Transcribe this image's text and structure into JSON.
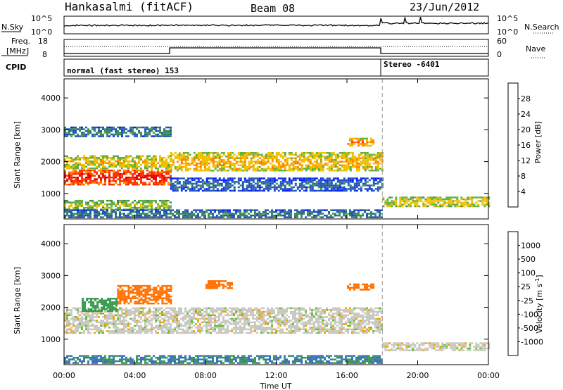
{
  "header": {
    "station": "Hankasalmi (fitACF)",
    "beam": "Beam 08",
    "date": "23/Jun/2012"
  },
  "noise_panel": {
    "left_label": "N.Sky",
    "left_ticks": [
      "10^5",
      "10^0"
    ],
    "right_label": "N.Search",
    "right_ticks": [
      "10^5",
      "10^0"
    ]
  },
  "freq_panel": {
    "left_label_1": "Freq.",
    "left_label_2": "[MHz]",
    "left_ticks": [
      "18",
      "8"
    ],
    "right_label": "Nave",
    "right_ticks": [
      "60",
      "0"
    ]
  },
  "cpid_panel": {
    "label": "CPID",
    "modes": [
      "normal (fast stereo) 153",
      "Stereo -6401"
    ]
  },
  "colors": {
    "power_scale": [
      "#0020ff",
      "#2050c0",
      "#3a8a50",
      "#60b040",
      "#f0c000",
      "#ff8000",
      "#ff3000",
      "#e00000"
    ],
    "velocity_scale": [
      "#1c3cc8",
      "#3a6ad0",
      "#3a9a50",
      "#60c030",
      "#c8c8c0",
      "#f0a000",
      "#ff7000",
      "#ff3000",
      "#e00000"
    ]
  },
  "chart_data": [
    {
      "type": "heatmap",
      "title": "Power",
      "xlabel": "Time UT",
      "ylabel": "Slant Range [km]",
      "x_ticks": [
        "00:00",
        "04:00",
        "08:00",
        "12:00",
        "16:00",
        "20:00",
        "00:00"
      ],
      "y_ticks": [
        "1000",
        "2000",
        "3000",
        "4000"
      ],
      "ylim": [
        200,
        4600
      ],
      "colorbar_label": "Power [dB]",
      "colorbar_ticks": [
        "4",
        "8",
        "12",
        "16",
        "20",
        "24",
        "28"
      ],
      "colorbar_range": [
        0,
        32
      ],
      "mode_change_hour": 18,
      "features": [
        {
          "start": 0,
          "end": 6,
          "range": [
            1300,
            1750
          ],
          "level": 26
        },
        {
          "start": 0,
          "end": 6,
          "range": [
            1800,
            2200
          ],
          "level": 17
        },
        {
          "start": 0,
          "end": 6,
          "range": [
            2800,
            3100
          ],
          "level": 8
        },
        {
          "start": 0,
          "end": 6,
          "range": [
            500,
            800
          ],
          "level": 14
        },
        {
          "start": 6,
          "end": 18,
          "range": [
            1700,
            2300
          ],
          "level": 18
        },
        {
          "start": 6,
          "end": 18,
          "range": [
            1100,
            1500
          ],
          "level": 6
        },
        {
          "start": 16,
          "end": 17.5,
          "range": [
            2500,
            2750
          ],
          "level": 20
        },
        {
          "start": 18,
          "end": 24,
          "range": [
            600,
            900
          ],
          "level": 16
        },
        {
          "start": 0,
          "end": 18,
          "range": [
            250,
            500
          ],
          "level": 8
        }
      ]
    },
    {
      "type": "heatmap",
      "title": "Velocity",
      "xlabel": "Time UT",
      "ylabel": "Slant Range [km]",
      "x_ticks": [
        "00:00",
        "04:00",
        "08:00",
        "12:00",
        "16:00",
        "20:00",
        "00:00"
      ],
      "y_ticks": [
        "1000",
        "2000",
        "3000",
        "4000"
      ],
      "ylim": [
        200,
        4600
      ],
      "colorbar_label": "Velocity [m s^-1]",
      "colorbar_ticks": [
        "1000",
        "500",
        "100",
        "25",
        "-25",
        "-100",
        "-500",
        "-1000"
      ],
      "mode_change_hour": 18,
      "features": [
        {
          "start": 0,
          "end": 18,
          "range": [
            1200,
            2000
          ],
          "level": 0
        },
        {
          "start": 3,
          "end": 6,
          "range": [
            2100,
            2700
          ],
          "level": -300
        },
        {
          "start": 1,
          "end": 3,
          "range": [
            1900,
            2300
          ],
          "level": 150
        },
        {
          "start": 8,
          "end": 9.5,
          "range": [
            2600,
            2850
          ],
          "level": -300
        },
        {
          "start": 16,
          "end": 17.5,
          "range": [
            2550,
            2750
          ],
          "level": -300
        },
        {
          "start": 18,
          "end": 24,
          "range": [
            650,
            900
          ],
          "level": 0
        },
        {
          "start": 0,
          "end": 18,
          "range": [
            250,
            500
          ],
          "level": 300
        }
      ]
    }
  ]
}
